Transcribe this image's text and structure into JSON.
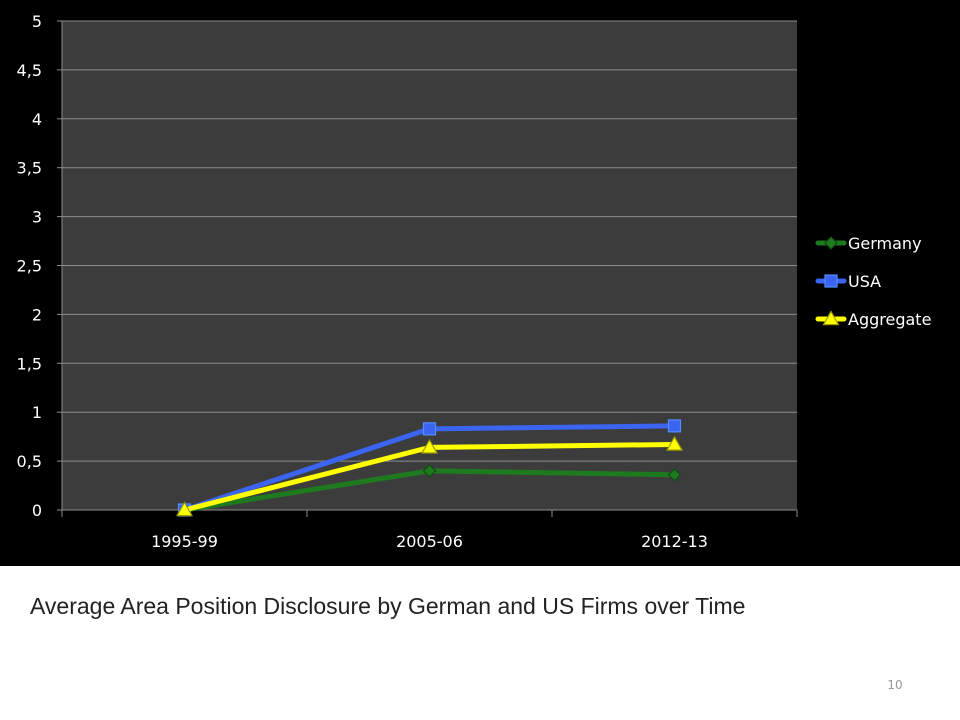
{
  "chart_data": {
    "type": "line",
    "title": "",
    "xlabel": "",
    "ylabel": "",
    "categories": [
      "1995-99",
      "2005-06",
      "2012-13"
    ],
    "ylim": [
      0,
      5
    ],
    "yticks": [
      "0",
      "0,5",
      "1",
      "1,5",
      "2",
      "2,5",
      "3",
      "3,5",
      "4",
      "4,5",
      "5"
    ],
    "ytick_values": [
      0,
      0.5,
      1,
      1.5,
      2,
      2.5,
      3,
      3.5,
      4,
      4.5,
      5
    ],
    "grid": true,
    "legend_position": "right",
    "series": [
      {
        "name": "Germany",
        "values": [
          0,
          0.4,
          0.36
        ],
        "color": "#1e7a1e",
        "marker": "diamond"
      },
      {
        "name": "USA",
        "values": [
          0,
          0.83,
          0.86
        ],
        "color": "#3b64f0",
        "marker": "square"
      },
      {
        "name": "Aggregate",
        "values": [
          0,
          0.64,
          0.67
        ],
        "color": "#ffff00",
        "marker": "triangle"
      }
    ],
    "colors": {
      "background": "#000000",
      "plot_area": "#3c3c3c",
      "gridline": "#8c8c8c"
    }
  },
  "caption": "Average Area Position Disclosure by German and US Firms over Time",
  "slide_number": "10"
}
